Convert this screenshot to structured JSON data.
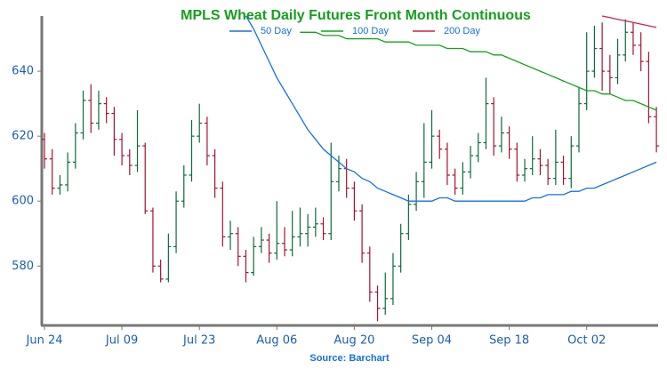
{
  "chart_data": {
    "type": "ohlc",
    "title": "MPLS Wheat Daily Futures Front Month Continuous",
    "source": "Source: Barchart",
    "categories": [
      "Jun 24",
      null,
      null,
      null,
      null,
      null,
      null,
      null,
      null,
      null,
      "Jul 09",
      null,
      null,
      null,
      null,
      null,
      null,
      null,
      null,
      null,
      "Jul 23",
      null,
      null,
      null,
      null,
      null,
      null,
      null,
      null,
      null,
      "Aug 06",
      null,
      null,
      null,
      null,
      null,
      null,
      null,
      null,
      null,
      "Aug 20",
      null,
      null,
      null,
      null,
      null,
      null,
      null,
      null,
      null,
      "Sep 04",
      null,
      null,
      null,
      null,
      null,
      null,
      null,
      null,
      null,
      "Sep 18",
      null,
      null,
      null,
      null,
      null,
      null,
      null,
      null,
      null,
      "Oct 02",
      null,
      null,
      null,
      null,
      null,
      null,
      null,
      null,
      null
    ],
    "open": [
      619,
      613,
      604,
      605,
      612,
      621,
      631,
      624,
      630,
      627,
      619,
      614,
      611,
      617,
      597,
      580,
      576,
      586,
      600,
      608,
      620,
      624,
      614,
      604,
      589,
      590,
      583,
      578,
      586,
      588,
      584,
      587,
      585,
      589,
      590,
      592,
      593,
      590,
      606,
      610,
      604,
      597,
      584,
      572,
      567,
      570,
      580,
      590,
      599,
      606,
      612,
      620,
      616,
      608,
      604,
      609,
      614,
      618,
      630,
      617,
      621,
      616,
      608,
      610,
      613,
      611,
      607,
      612,
      607,
      617,
      630,
      640,
      647,
      640,
      638,
      645,
      652,
      648,
      643,
      626
    ],
    "high": [
      621,
      616,
      608,
      615,
      624,
      634,
      636,
      634,
      632,
      629,
      621,
      616,
      628,
      618,
      598,
      582,
      590,
      603,
      611,
      625,
      630,
      626,
      616,
      606,
      594,
      592,
      585,
      589,
      592,
      590,
      600,
      592,
      597,
      598,
      596,
      598,
      595,
      618,
      614,
      613,
      606,
      599,
      586,
      574,
      578,
      584,
      593,
      602,
      609,
      624,
      628,
      622,
      618,
      610,
      612,
      617,
      621,
      638,
      632,
      626,
      623,
      618,
      613,
      620,
      616,
      613,
      622,
      614,
      620,
      635,
      652,
      654,
      655,
      645,
      650,
      656,
      655,
      652,
      646,
      629
    ],
    "low": [
      610,
      602,
      602,
      603,
      610,
      619,
      621,
      622,
      624,
      614,
      611,
      608,
      609,
      596,
      578,
      575,
      575,
      584,
      598,
      606,
      618,
      611,
      601,
      586,
      585,
      580,
      575,
      577,
      584,
      581,
      582,
      583,
      583,
      586,
      586,
      589,
      588,
      588,
      603,
      601,
      594,
      581,
      569,
      563,
      565,
      568,
      578,
      588,
      597,
      601,
      610,
      613,
      605,
      602,
      602,
      607,
      612,
      616,
      614,
      615,
      613,
      606,
      606,
      608,
      608,
      605,
      605,
      605,
      604,
      615,
      628,
      638,
      634,
      633,
      636,
      643,
      645,
      640,
      624,
      615
    ],
    "close": [
      613,
      604,
      605,
      612,
      621,
      631,
      624,
      630,
      627,
      619,
      614,
      611,
      617,
      597,
      580,
      576,
      586,
      600,
      608,
      620,
      624,
      614,
      604,
      589,
      590,
      583,
      578,
      586,
      588,
      584,
      587,
      585,
      589,
      590,
      592,
      593,
      590,
      606,
      610,
      604,
      597,
      584,
      572,
      567,
      570,
      580,
      590,
      599,
      606,
      612,
      620,
      616,
      608,
      604,
      609,
      614,
      618,
      630,
      617,
      621,
      616,
      608,
      610,
      613,
      611,
      607,
      612,
      607,
      617,
      630,
      640,
      647,
      640,
      638,
      645,
      652,
      648,
      643,
      626,
      617
    ],
    "up_color": "#0b6b3a",
    "down_color": "#a01530",
    "series": [
      {
        "name": "50 Day",
        "color": "#1570e0",
        "values": [
          null,
          null,
          null,
          null,
          null,
          null,
          null,
          null,
          null,
          null,
          null,
          null,
          null,
          null,
          null,
          null,
          null,
          null,
          null,
          null,
          null,
          null,
          null,
          null,
          null,
          null,
          657,
          653,
          648,
          643,
          638,
          634,
          630,
          626,
          622,
          619,
          616,
          614,
          612,
          610,
          609,
          607,
          606,
          604,
          603,
          602,
          601,
          600,
          600,
          600,
          600,
          601,
          601,
          600,
          600,
          600,
          600,
          600,
          600,
          600,
          600,
          600,
          600,
          601,
          601,
          602,
          602,
          602,
          603,
          603,
          604,
          604,
          605,
          606,
          607,
          608,
          609,
          610,
          611,
          612
        ]
      },
      {
        "name": "100 Day",
        "color": "#14a01e",
        "values": [
          null,
          null,
          null,
          null,
          null,
          null,
          null,
          null,
          null,
          null,
          null,
          null,
          null,
          null,
          null,
          null,
          null,
          null,
          null,
          null,
          null,
          null,
          null,
          null,
          null,
          null,
          null,
          null,
          null,
          null,
          null,
          null,
          null,
          652,
          652,
          652,
          651,
          651,
          651,
          650,
          650,
          650,
          650,
          650,
          649,
          649,
          649,
          649,
          648,
          648,
          648,
          648,
          647,
          647,
          647,
          646,
          646,
          646,
          645,
          645,
          644,
          643,
          642,
          641,
          640,
          639,
          638,
          637,
          636,
          635,
          634,
          634,
          633,
          633,
          632,
          631,
          631,
          630,
          629,
          628
        ]
      },
      {
        "name": "200 Day",
        "color": "#d0204a",
        "values": [
          null,
          null,
          null,
          null,
          null,
          null,
          null,
          null,
          null,
          null,
          null,
          null,
          null,
          null,
          null,
          null,
          null,
          null,
          null,
          null,
          null,
          null,
          null,
          null,
          null,
          null,
          null,
          null,
          null,
          null,
          null,
          null,
          null,
          null,
          null,
          null,
          null,
          null,
          null,
          null,
          null,
          null,
          null,
          null,
          null,
          null,
          null,
          null,
          null,
          null,
          null,
          null,
          null,
          null,
          null,
          null,
          null,
          null,
          null,
          null,
          null,
          null,
          null,
          null,
          null,
          null,
          null,
          null,
          null,
          null,
          null,
          null,
          657,
          656.5,
          656,
          655.5,
          655,
          654.5,
          654,
          653.5
        ]
      }
    ],
    "ylim": [
      562,
      657
    ],
    "yticks": [
      580,
      600,
      620,
      640
    ]
  }
}
